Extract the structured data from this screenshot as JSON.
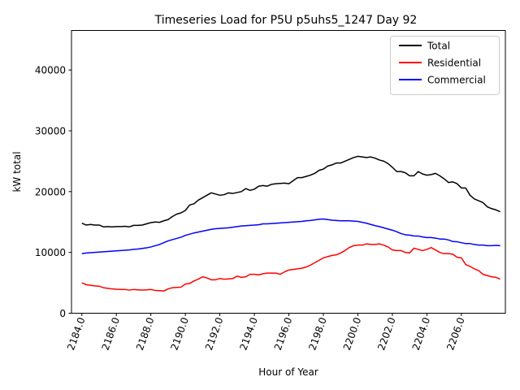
{
  "chart_data": {
    "type": "line",
    "title": "Timeseries Load for P5U p5uhs5_1247  Day 92",
    "xlabel": "Hour of Year",
    "ylabel": "kW total",
    "xlim": [
      2183.4,
      2208.55
    ],
    "ylim": [
      0,
      46500
    ],
    "xticks": [
      2184,
      2186,
      2188,
      2190,
      2192,
      2194,
      2196,
      2198,
      2200,
      2202,
      2204,
      2206
    ],
    "xtick_labels": [
      "2184.0",
      "2186.0",
      "2188.0",
      "2190.0",
      "2192.0",
      "2194.0",
      "2196.0",
      "2198.0",
      "2200.0",
      "2202.0",
      "2204.0",
      "2206.0"
    ],
    "yticks": [
      0,
      10000,
      20000,
      30000,
      40000
    ],
    "ytick_labels": [
      "0",
      "10000",
      "20000",
      "30000",
      "40000"
    ],
    "legend_position": "top-right",
    "grid": false,
    "x_start": 2184.0,
    "x_step": 0.25,
    "series": [
      {
        "name": "Total",
        "color": "#000000",
        "values": [
          14800,
          14500,
          14600,
          14500,
          14500,
          14200,
          14250,
          14200,
          14250,
          14250,
          14300,
          14200,
          14450,
          14450,
          14500,
          14700,
          14900,
          15000,
          14950,
          15200,
          15400,
          15900,
          16300,
          16500,
          16900,
          17800,
          18000,
          18600,
          19000,
          19400,
          19800,
          19600,
          19400,
          19500,
          19800,
          19700,
          19850,
          20000,
          20500,
          20200,
          20400,
          20900,
          21000,
          20900,
          21200,
          21300,
          21350,
          21400,
          21300,
          21800,
          22300,
          22300,
          22500,
          22700,
          23000,
          23500,
          23700,
          24200,
          24400,
          24700,
          24700,
          25000,
          25300,
          25600,
          25800,
          25700,
          25600,
          25700,
          25500,
          25200,
          25000,
          24600,
          24000,
          23300,
          23300,
          23100,
          22600,
          22600,
          23300,
          22900,
          22700,
          22800,
          23000,
          22600,
          22100,
          21500,
          21600,
          21300,
          20600,
          20600,
          19400,
          18800,
          18500,
          18200,
          17500,
          17200,
          17000,
          16700
        ]
      },
      {
        "name": "Residential",
        "color": "#ff0000",
        "values": [
          5000,
          4700,
          4600,
          4500,
          4450,
          4200,
          4100,
          4000,
          3950,
          3900,
          3900,
          3800,
          3900,
          3850,
          3800,
          3850,
          3900,
          3750,
          3700,
          3650,
          4000,
          4200,
          4250,
          4300,
          4800,
          4900,
          5300,
          5600,
          6000,
          5800,
          5500,
          5500,
          5700,
          5600,
          5650,
          5700,
          6100,
          5900,
          6000,
          6400,
          6400,
          6300,
          6500,
          6600,
          6600,
          6600,
          6400,
          6800,
          7100,
          7200,
          7300,
          7400,
          7600,
          7900,
          8300,
          8700,
          9100,
          9300,
          9500,
          9600,
          9900,
          10300,
          10800,
          11100,
          11200,
          11200,
          11400,
          11300,
          11300,
          11400,
          11200,
          10900,
          10400,
          10300,
          10300,
          10000,
          9900,
          10700,
          10500,
          10300,
          10500,
          10800,
          10400,
          10000,
          9800,
          9800,
          9700,
          9200,
          9100,
          8000,
          7700,
          7300,
          7000,
          6400,
          6200,
          6000,
          5900,
          5600
        ]
      },
      {
        "name": "Commercial",
        "color": "#0000ff",
        "values": [
          9800,
          9900,
          9950,
          10000,
          10050,
          10100,
          10150,
          10200,
          10250,
          10300,
          10350,
          10400,
          10500,
          10550,
          10650,
          10750,
          10900,
          11100,
          11300,
          11600,
          11900,
          12100,
          12300,
          12500,
          12800,
          13000,
          13200,
          13350,
          13500,
          13650,
          13800,
          13900,
          13950,
          14000,
          14050,
          14150,
          14250,
          14350,
          14400,
          14450,
          14500,
          14550,
          14700,
          14700,
          14750,
          14800,
          14850,
          14900,
          14950,
          15000,
          15050,
          15100,
          15200,
          15250,
          15350,
          15450,
          15500,
          15400,
          15300,
          15250,
          15200,
          15200,
          15200,
          15150,
          15100,
          14950,
          14800,
          14600,
          14400,
          14250,
          14050,
          13850,
          13650,
          13400,
          13100,
          12900,
          12850,
          12700,
          12700,
          12550,
          12450,
          12450,
          12350,
          12200,
          12200,
          12050,
          11800,
          11750,
          11600,
          11450,
          11450,
          11300,
          11200,
          11200,
          11100,
          11100,
          11150,
          11100
        ]
      }
    ]
  }
}
